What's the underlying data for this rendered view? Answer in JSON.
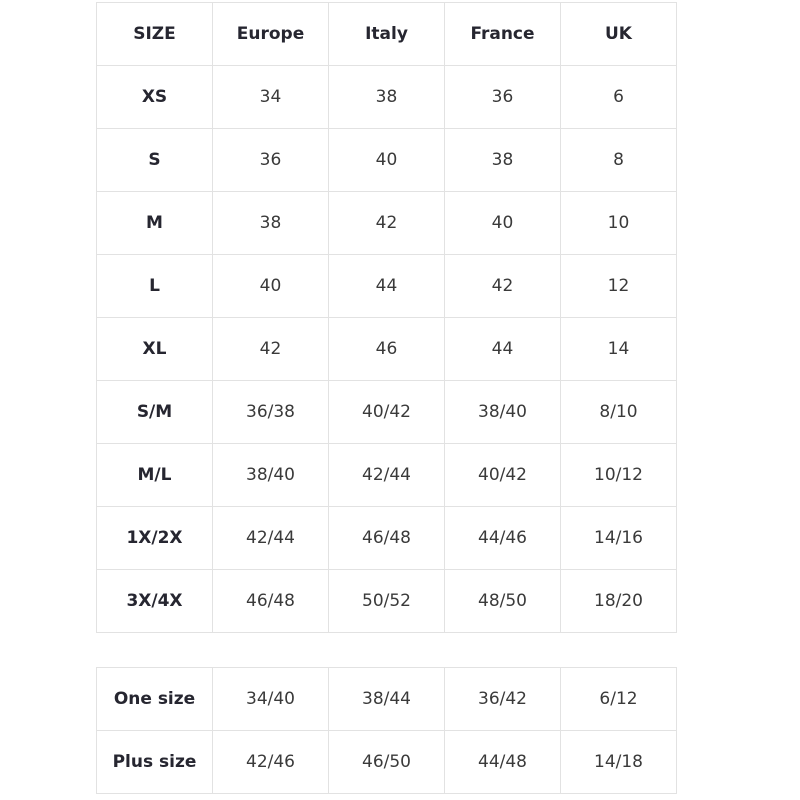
{
  "size_chart": {
    "headers": [
      "SIZE",
      "Europe",
      "Italy",
      "France",
      "UK"
    ],
    "rows": [
      [
        "XS",
        "34",
        "38",
        "36",
        "6"
      ],
      [
        "S",
        "36",
        "40",
        "38",
        "8"
      ],
      [
        "M",
        "38",
        "42",
        "40",
        "10"
      ],
      [
        "L",
        "40",
        "44",
        "42",
        "12"
      ],
      [
        "XL",
        "42",
        "46",
        "44",
        "14"
      ],
      [
        "S/M",
        "36/38",
        "40/42",
        "38/40",
        "8/10"
      ],
      [
        "M/L",
        "38/40",
        "42/44",
        "40/42",
        "10/12"
      ],
      [
        "1X/2X",
        "42/44",
        "46/48",
        "44/46",
        "14/16"
      ],
      [
        "3X/4X",
        "46/48",
        "50/52",
        "48/50",
        "18/20"
      ]
    ]
  },
  "extra_sizes": {
    "rows": [
      [
        "One size",
        "34/40",
        "38/44",
        "36/42",
        "6/12"
      ],
      [
        "Plus size",
        "42/46",
        "46/50",
        "44/48",
        "14/18"
      ]
    ]
  }
}
